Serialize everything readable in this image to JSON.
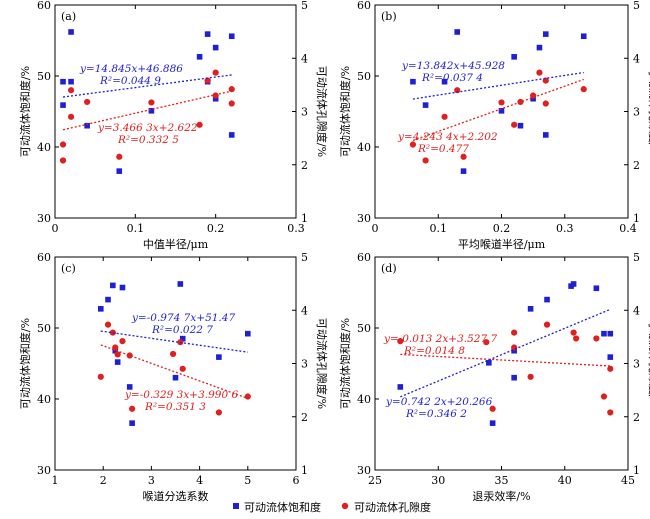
{
  "legend": {
    "sat_label": "可动流体饱和度",
    "por_label": "可动流体孔隙度",
    "sat_color": "#1f1fd6",
    "por_color": "#e0201e"
  },
  "chart_data": [
    {
      "type": "scatter",
      "panel_label": "(a)",
      "xlabel": "中值半径/μm",
      "ylabel_left": "可动流体饱和度/%",
      "ylabel_right": "可动流体孔隙度/%",
      "xlim": [
        0,
        0.3
      ],
      "xticks": [
        "0",
        "0.1",
        "0.2",
        "0.3"
      ],
      "ylim_left": [
        30,
        60
      ],
      "yticks_left": [
        "30",
        "40",
        "50",
        "60"
      ],
      "ylim_right": [
        1,
        5
      ],
      "yticks_right": [
        "1",
        "2",
        "3",
        "4",
        "5"
      ],
      "series": [
        {
          "name": "可动流体饱和度",
          "axis": "left",
          "x": [
            0.01,
            0.01,
            0.02,
            0.02,
            0.04,
            0.08,
            0.12,
            0.18,
            0.19,
            0.19,
            0.2,
            0.2,
            0.22,
            0.22
          ],
          "y": [
            49.2,
            45.9,
            56.2,
            49.2,
            43.0,
            36.6,
            45.1,
            52.7,
            55.9,
            49.2,
            54.0,
            46.8,
            55.6,
            41.7
          ]
        },
        {
          "name": "可动流体孔隙度",
          "axis": "right",
          "x": [
            0.01,
            0.01,
            0.02,
            0.02,
            0.04,
            0.08,
            0.12,
            0.18,
            0.19,
            0.2,
            0.2,
            0.22,
            0.22
          ],
          "y": [
            2.08,
            2.38,
            3.4,
            2.9,
            3.18,
            2.15,
            3.17,
            2.75,
            3.58,
            3.73,
            3.3,
            3.42,
            3.15
          ]
        }
      ],
      "fits": [
        {
          "axis": "left",
          "eq": "y=14.845x+46.886",
          "r2": "R²=0.044 9",
          "xrange": [
            0.01,
            0.22
          ]
        },
        {
          "axis": "right",
          "eq": "y=3.466 3x+2.622",
          "r2": "R²=0.332 5",
          "xrange": [
            0.01,
            0.22
          ]
        }
      ]
    },
    {
      "type": "scatter",
      "panel_label": "(b)",
      "xlabel": "平均喉道半径/μm",
      "ylabel_left": "可动流体饱和度/%",
      "ylabel_right": "可动流体孔隙度/%",
      "xlim": [
        0,
        0.4
      ],
      "xticks": [
        "0",
        "0.1",
        "0.2",
        "0.3",
        "0.4"
      ],
      "ylim_left": [
        30,
        60
      ],
      "yticks_left": [
        "30",
        "40",
        "50",
        "60"
      ],
      "ylim_right": [
        1,
        5
      ],
      "yticks_right": [
        "1",
        "2",
        "3",
        "4",
        "5"
      ],
      "series": [
        {
          "name": "可动流体饱和度",
          "axis": "left",
          "x": [
            0.06,
            0.08,
            0.11,
            0.13,
            0.14,
            0.2,
            0.22,
            0.23,
            0.25,
            0.26,
            0.27,
            0.27,
            0.33
          ],
          "y": [
            49.2,
            45.9,
            49.2,
            56.2,
            36.6,
            45.1,
            52.7,
            43.0,
            46.8,
            54.0,
            55.9,
            41.7,
            55.6
          ]
        },
        {
          "name": "可动流体孔隙度",
          "axis": "right",
          "x": [
            0.06,
            0.08,
            0.11,
            0.13,
            0.14,
            0.2,
            0.22,
            0.23,
            0.25,
            0.26,
            0.27,
            0.27,
            0.33
          ],
          "y": [
            2.38,
            2.08,
            2.9,
            3.4,
            2.15,
            3.17,
            2.75,
            3.18,
            3.3,
            3.73,
            3.58,
            3.15,
            3.42
          ]
        }
      ],
      "fits": [
        {
          "axis": "left",
          "eq": "y=13.842x+45.928",
          "r2": "R²=0.037 4",
          "xrange": [
            0.06,
            0.33
          ]
        },
        {
          "axis": "right",
          "eq": "y=4.243 4x+2.202",
          "r2": "R²=0.477",
          "xrange": [
            0.06,
            0.33
          ]
        }
      ]
    },
    {
      "type": "scatter",
      "panel_label": "(c)",
      "xlabel": "喉道分选系数",
      "ylabel_left": "可动流体饱和度/%",
      "ylabel_right": "可动流体孔隙度/%",
      "xlim": [
        1,
        6
      ],
      "xticks": [
        "1",
        "2",
        "3",
        "4",
        "5",
        "6"
      ],
      "ylim_left": [
        30,
        60
      ],
      "yticks_left": [
        "30",
        "40",
        "50",
        "60"
      ],
      "ylim_right": [
        1,
        5
      ],
      "yticks_right": [
        "1",
        "2",
        "3",
        "4",
        "5"
      ],
      "series": [
        {
          "name": "可动流体饱和度",
          "axis": "left",
          "x": [
            1.95,
            2.1,
            2.2,
            2.25,
            2.3,
            2.4,
            2.55,
            2.6,
            3.5,
            3.6,
            3.65,
            4.4,
            5.0
          ],
          "y": [
            52.7,
            54.0,
            56.0,
            46.8,
            45.2,
            55.7,
            41.7,
            36.6,
            43.0,
            56.2,
            48.5,
            45.9,
            49.2
          ]
        },
        {
          "name": "可动流体孔隙度",
          "axis": "right",
          "x": [
            1.95,
            2.1,
            2.2,
            2.25,
            2.3,
            2.4,
            2.55,
            2.6,
            3.45,
            3.6,
            3.65,
            4.4,
            5.0
          ],
          "y": [
            2.75,
            3.73,
            3.58,
            3.3,
            3.17,
            3.42,
            3.15,
            2.15,
            3.18,
            3.4,
            2.9,
            2.08,
            2.38
          ]
        }
      ],
      "fits": [
        {
          "axis": "left",
          "eq": "y=-0.974 7x+51.47",
          "r2": "R²=0.022 7",
          "xrange": [
            1.95,
            5.0
          ]
        },
        {
          "axis": "right",
          "eq": "y=-0.329 3x+3.990 6",
          "r2": "R²=0.351 3",
          "xrange": [
            1.95,
            5.0
          ]
        }
      ]
    },
    {
      "type": "scatter",
      "panel_label": "(d)",
      "xlabel": "退汞效率/%",
      "ylabel_left": "可动流体饱和度/%",
      "ylabel_right": "可动流体孔隙度/%",
      "xlim": [
        25,
        45
      ],
      "xticks": [
        "25",
        "30",
        "35",
        "40",
        "45"
      ],
      "ylim_left": [
        30,
        60
      ],
      "yticks_left": [
        "30",
        "40",
        "50",
        "60"
      ],
      "ylim_right": [
        1,
        5
      ],
      "yticks_right": [
        "1",
        "2",
        "3",
        "4",
        "5"
      ],
      "series": [
        {
          "name": "可动流体饱和度",
          "axis": "left",
          "x": [
            27.0,
            34.0,
            34.3,
            36.0,
            36.0,
            37.3,
            38.6,
            40.5,
            40.7,
            42.5,
            43.1,
            43.6,
            43.6
          ],
          "y": [
            41.7,
            45.1,
            36.6,
            43.0,
            46.8,
            52.7,
            54.0,
            55.9,
            56.2,
            55.6,
            49.2,
            49.2,
            45.9
          ]
        },
        {
          "name": "可动流体孔隙度",
          "axis": "right",
          "x": [
            27.0,
            33.8,
            34.3,
            36.0,
            36.0,
            37.3,
            38.6,
            40.7,
            40.9,
            42.5,
            43.1,
            43.6,
            43.6
          ],
          "y": [
            3.42,
            3.4,
            2.15,
            3.3,
            3.58,
            2.75,
            3.73,
            3.58,
            3.47,
            3.47,
            2.38,
            2.9,
            2.08
          ]
        }
      ],
      "fits": [
        {
          "axis": "right",
          "eq": "y=-0.013 2x+3.527 7",
          "r2": "R²=0.014 8",
          "xrange": [
            27.0,
            43.6
          ]
        },
        {
          "axis": "left",
          "eq": "y=0.742 2x+20.266",
          "r2": "R²=0.346 2",
          "xrange": [
            27.0,
            43.6
          ]
        }
      ]
    }
  ]
}
